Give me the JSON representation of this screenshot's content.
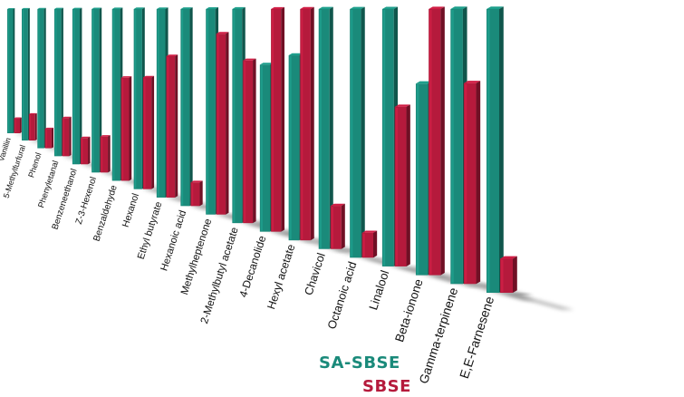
{
  "chart_data": {
    "type": "bar",
    "title": "",
    "xlabel": "",
    "ylabel": "",
    "ylim": [
      0,
      100
    ],
    "grid": false,
    "legend_position": "bottom-right",
    "categories": [
      "Vanillin",
      "5-Methylfurfural",
      "Phenol",
      "Phenyletanal",
      "Benzeneethanol",
      "Z-3-Hexenol",
      "Benzaldehyde",
      "Hexanol",
      "Ethyl butyrate",
      "Hexanoic acid",
      "Methylheptenone",
      "2-Methylbutyl acetate",
      "4-Decanolide",
      "Hexyl acetate",
      "Chavicol",
      "Octanoic acid",
      "Linalool",
      "Beta-ionone",
      "Gamma-terpinene",
      "E,E-Farnesene"
    ],
    "series": [
      {
        "name": "SA-SBSE",
        "color": "#1a8a7a",
        "values": [
          100,
          100,
          100,
          100,
          100,
          100,
          100,
          100,
          100,
          100,
          100,
          100,
          75,
          80,
          100,
          100,
          100,
          72,
          100,
          100
        ]
      },
      {
        "name": "SBSE",
        "color": "#b51a3c",
        "values": [
          12,
          20,
          14,
          26,
          17,
          22,
          60,
          62,
          75,
          12,
          88,
          76,
          100,
          100,
          18,
          10,
          62,
          100,
          73,
          12
        ]
      }
    ]
  },
  "legend": {
    "a_label": "SA-SBSE",
    "b_label": "SBSE",
    "a_color": "#1a8a7a",
    "b_color": "#b51a3c"
  }
}
